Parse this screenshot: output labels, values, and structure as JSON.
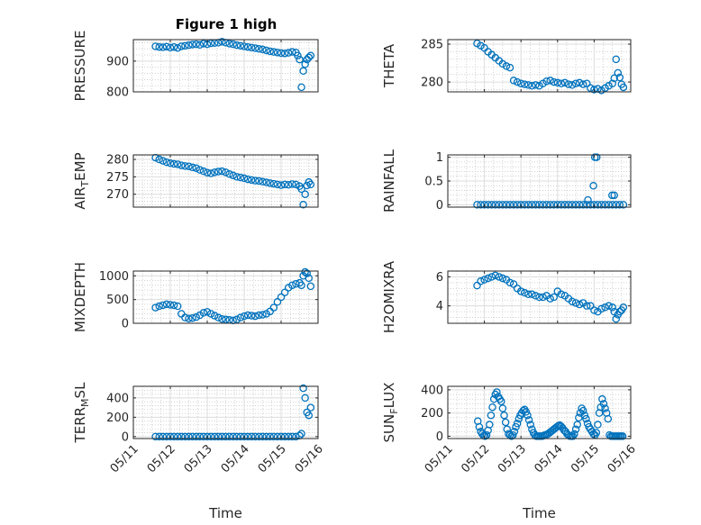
{
  "figure": {
    "title": "Figure 1 high"
  },
  "chart_data": [
    {
      "type": "scatter",
      "ylabel": "PRESSURE",
      "ylim": [
        800,
        970
      ],
      "yticks": [
        800,
        900
      ],
      "xlim": [
        "05/11",
        "05/16"
      ],
      "xticks": [
        "05/11",
        "05/12",
        "05/13",
        "05/14",
        "05/15",
        "05/16"
      ],
      "show_xticklabels": false,
      "xlabel": "",
      "grid": "major-and-minor",
      "x": [
        11.6,
        11.7,
        11.8,
        11.9,
        12.0,
        12.1,
        12.2,
        12.3,
        12.4,
        12.5,
        12.6,
        12.7,
        12.8,
        12.9,
        13.0,
        13.1,
        13.2,
        13.3,
        13.4,
        13.5,
        13.6,
        13.7,
        13.8,
        13.9,
        14.0,
        14.1,
        14.2,
        14.3,
        14.4,
        14.5,
        14.6,
        14.7,
        14.8,
        14.9,
        15.0,
        15.1,
        15.2,
        15.3,
        15.4,
        15.45,
        15.5,
        15.55,
        15.6,
        15.65,
        15.7,
        15.75,
        15.8
      ],
      "y": [
        948,
        946,
        945,
        947,
        944,
        946,
        943,
        948,
        950,
        952,
        954,
        955,
        953,
        957,
        955,
        958,
        959,
        960,
        963,
        960,
        957,
        955,
        952,
        950,
        948,
        946,
        944,
        942,
        940,
        938,
        935,
        932,
        930,
        928,
        926,
        925,
        927,
        930,
        928,
        918,
        905,
        815,
        868,
        890,
        905,
        912,
        918
      ]
    },
    {
      "type": "scatter",
      "ylabel": "THETA",
      "ylim": [
        278.7,
        285.6
      ],
      "yticks": [
        280,
        285
      ],
      "xlim": [
        "05/11",
        "05/16"
      ],
      "xticks": [
        "05/11",
        "05/12",
        "05/13",
        "05/14",
        "05/15",
        "05/16"
      ],
      "show_xticklabels": false,
      "xlabel": "",
      "grid": "major-and-minor",
      "x": [
        11.8,
        11.9,
        12.0,
        12.1,
        12.2,
        12.3,
        12.4,
        12.5,
        12.6,
        12.7,
        12.8,
        12.9,
        13.0,
        13.1,
        13.2,
        13.3,
        13.4,
        13.5,
        13.6,
        13.7,
        13.8,
        13.9,
        14.0,
        14.1,
        14.2,
        14.3,
        14.4,
        14.5,
        14.6,
        14.7,
        14.8,
        14.9,
        15.0,
        15.1,
        15.2,
        15.3,
        15.4,
        15.5,
        15.55,
        15.6,
        15.65,
        15.7,
        15.75,
        15.8
      ],
      "y": [
        285.1,
        284.8,
        284.5,
        284.0,
        283.6,
        283.2,
        282.8,
        282.4,
        282.1,
        281.9,
        280.2,
        280.0,
        279.8,
        279.7,
        279.6,
        279.5,
        279.6,
        279.5,
        279.8,
        280.1,
        280.2,
        280.0,
        279.9,
        279.8,
        279.9,
        279.7,
        279.6,
        279.8,
        279.9,
        279.7,
        279.8,
        279.2,
        279.0,
        279.1,
        278.9,
        279.2,
        279.5,
        279.8,
        280.5,
        283.0,
        281.2,
        280.6,
        279.7,
        279.3
      ]
    },
    {
      "type": "scatter",
      "ylabel": "AIR_TEMP",
      "ylim": [
        266.3,
        281.3
      ],
      "yticks": [
        270,
        275,
        280
      ],
      "xlim": [
        "05/11",
        "05/16"
      ],
      "xticks": [
        "05/11",
        "05/12",
        "05/13",
        "05/14",
        "05/15",
        "05/16"
      ],
      "show_xticklabels": false,
      "xlabel": "",
      "grid": "major-and-minor",
      "x": [
        11.6,
        11.7,
        11.8,
        11.9,
        12.0,
        12.1,
        12.2,
        12.3,
        12.4,
        12.5,
        12.6,
        12.7,
        12.8,
        12.9,
        13.0,
        13.1,
        13.2,
        13.3,
        13.4,
        13.5,
        13.6,
        13.7,
        13.8,
        13.9,
        14.0,
        14.1,
        14.2,
        14.3,
        14.4,
        14.5,
        14.6,
        14.7,
        14.8,
        14.9,
        15.0,
        15.1,
        15.2,
        15.3,
        15.4,
        15.5,
        15.55,
        15.6,
        15.65,
        15.7,
        15.75,
        15.8
      ],
      "y": [
        280.5,
        280.0,
        279.6,
        279.2,
        278.9,
        278.7,
        278.6,
        278.3,
        278.1,
        278.0,
        277.7,
        277.5,
        277.0,
        276.6,
        276.2,
        276.0,
        276.3,
        276.5,
        276.6,
        276.3,
        275.8,
        275.4,
        275.0,
        274.8,
        274.6,
        274.3,
        274.1,
        273.9,
        273.8,
        273.6,
        273.4,
        273.2,
        273.0,
        272.8,
        272.6,
        272.8,
        272.7,
        272.9,
        272.8,
        272.3,
        271.5,
        267.0,
        270.0,
        272.5,
        273.5,
        272.8
      ]
    },
    {
      "type": "scatter",
      "ylabel": "RAINFALL",
      "ylim": [
        -0.05,
        1.05
      ],
      "yticks": [
        0,
        0.5,
        1
      ],
      "xlim": [
        "05/11",
        "05/16"
      ],
      "xticks": [
        "05/11",
        "05/12",
        "05/13",
        "05/14",
        "05/15",
        "05/16"
      ],
      "show_xticklabels": false,
      "xlabel": "",
      "grid": "major-and-minor",
      "x": [
        11.8,
        11.9,
        12.0,
        12.1,
        12.2,
        12.3,
        12.4,
        12.5,
        12.6,
        12.7,
        12.8,
        12.9,
        13.0,
        13.1,
        13.2,
        13.3,
        13.4,
        13.5,
        13.6,
        13.7,
        13.8,
        13.9,
        14.0,
        14.1,
        14.2,
        14.3,
        14.4,
        14.5,
        14.6,
        14.7,
        14.8,
        14.9,
        15.0,
        15.1,
        15.2,
        15.3,
        15.4,
        15.5,
        15.6,
        15.7,
        15.8,
        14.83,
        14.98,
        15.02,
        15.07,
        15.49,
        15.55
      ],
      "y": [
        0,
        0,
        0,
        0,
        0,
        0,
        0,
        0,
        0,
        0,
        0,
        0,
        0,
        0,
        0,
        0,
        0,
        0,
        0,
        0,
        0,
        0,
        0,
        0,
        0,
        0,
        0,
        0,
        0,
        0,
        0,
        0,
        0,
        0,
        0,
        0,
        0,
        0,
        0,
        0,
        0,
        0.1,
        0.4,
        1.0,
        1.0,
        0.2,
        0.2
      ]
    },
    {
      "type": "scatter",
      "ylabel": "MIXDEPTH",
      "ylim": [
        0,
        1100
      ],
      "yticks": [
        0,
        500,
        1000
      ],
      "xlim": [
        "05/11",
        "05/16"
      ],
      "xticks": [
        "05/11",
        "05/12",
        "05/13",
        "05/14",
        "05/15",
        "05/16"
      ],
      "show_xticklabels": false,
      "xlabel": "",
      "grid": "major-and-minor",
      "x": [
        11.6,
        11.7,
        11.8,
        11.9,
        12.0,
        12.1,
        12.2,
        12.3,
        12.4,
        12.5,
        12.6,
        12.7,
        12.8,
        12.9,
        13.0,
        13.1,
        13.2,
        13.3,
        13.4,
        13.5,
        13.6,
        13.7,
        13.8,
        13.9,
        14.0,
        14.1,
        14.2,
        14.3,
        14.4,
        14.5,
        14.6,
        14.7,
        14.8,
        14.9,
        15.0,
        15.1,
        15.2,
        15.3,
        15.4,
        15.5,
        15.55,
        15.6,
        15.65,
        15.7,
        15.75,
        15.8
      ],
      "y": [
        330,
        360,
        380,
        400,
        390,
        380,
        360,
        200,
        120,
        100,
        110,
        130,
        170,
        220,
        240,
        200,
        160,
        120,
        90,
        80,
        70,
        60,
        80,
        120,
        150,
        170,
        160,
        150,
        170,
        180,
        200,
        250,
        330,
        450,
        550,
        650,
        750,
        800,
        830,
        850,
        800,
        1000,
        1080,
        1050,
        950,
        780
      ]
    },
    {
      "type": "scatter",
      "ylabel": "H2OMIXRA",
      "ylim": [
        2.8,
        6.4
      ],
      "yticks": [
        4,
        6
      ],
      "xlim": [
        "05/11",
        "05/16"
      ],
      "xticks": [
        "05/11",
        "05/12",
        "05/13",
        "05/14",
        "05/15",
        "05/16"
      ],
      "show_xticklabels": false,
      "xlabel": "",
      "grid": "major-and-minor",
      "x": [
        11.8,
        11.9,
        12.0,
        12.1,
        12.2,
        12.3,
        12.4,
        12.5,
        12.6,
        12.7,
        12.8,
        12.9,
        13.0,
        13.1,
        13.2,
        13.3,
        13.4,
        13.5,
        13.6,
        13.7,
        13.8,
        13.9,
        14.0,
        14.1,
        14.2,
        14.3,
        14.4,
        14.5,
        14.6,
        14.7,
        14.8,
        14.9,
        15.0,
        15.1,
        15.2,
        15.3,
        15.4,
        15.5,
        15.55,
        15.6,
        15.65,
        15.7,
        15.75,
        15.8
      ],
      "y": [
        5.4,
        5.7,
        5.8,
        5.9,
        6.0,
        6.1,
        6.0,
        5.9,
        5.8,
        5.6,
        5.5,
        5.2,
        5.0,
        4.9,
        4.8,
        4.8,
        4.7,
        4.6,
        4.6,
        4.7,
        4.5,
        4.6,
        5.0,
        4.8,
        4.7,
        4.5,
        4.3,
        4.2,
        4.1,
        4.2,
        4.0,
        4.0,
        3.7,
        3.6,
        3.8,
        3.9,
        4.0,
        3.9,
        3.6,
        3.1,
        3.4,
        3.6,
        3.7,
        3.9
      ]
    },
    {
      "type": "scatter",
      "ylabel": "TERR_MSL",
      "ylim": [
        -20,
        520
      ],
      "yticks": [
        0,
        200,
        400
      ],
      "xlim": [
        "05/11",
        "05/16"
      ],
      "xticks": [
        "05/11",
        "05/12",
        "05/13",
        "05/14",
        "05/15",
        "05/16"
      ],
      "show_xticklabels": true,
      "xlabel": "Time",
      "grid": "major-and-minor",
      "x": [
        11.6,
        11.7,
        11.8,
        11.9,
        12.0,
        12.1,
        12.2,
        12.3,
        12.4,
        12.5,
        12.6,
        12.7,
        12.8,
        12.9,
        13.0,
        13.1,
        13.2,
        13.3,
        13.4,
        13.5,
        13.6,
        13.7,
        13.8,
        13.9,
        14.0,
        14.1,
        14.2,
        14.3,
        14.4,
        14.5,
        14.6,
        14.7,
        14.8,
        14.9,
        15.0,
        15.1,
        15.2,
        15.3,
        15.4,
        15.5,
        15.55,
        15.6,
        15.65,
        15.7,
        15.75,
        15.8
      ],
      "y": [
        0,
        0,
        0,
        0,
        0,
        0,
        0,
        0,
        0,
        0,
        0,
        0,
        0,
        0,
        0,
        0,
        0,
        0,
        0,
        0,
        0,
        0,
        0,
        0,
        0,
        0,
        0,
        0,
        0,
        0,
        0,
        0,
        0,
        0,
        0,
        0,
        0,
        0,
        0,
        10,
        30,
        500,
        400,
        250,
        220,
        300
      ]
    },
    {
      "type": "scatter",
      "ylabel": "SUN_FLUX",
      "ylim": [
        -20,
        430
      ],
      "yticks": [
        0,
        200,
        400
      ],
      "xlim": [
        "05/11",
        "05/16"
      ],
      "xticks": [
        "05/11",
        "05/12",
        "05/13",
        "05/14",
        "05/15",
        "05/16"
      ],
      "show_xticklabels": true,
      "xlabel": "Time",
      "grid": "major-and-minor",
      "x": [
        11.82,
        11.86,
        11.9,
        11.94,
        11.98,
        12.02,
        12.06,
        12.1,
        12.14,
        12.18,
        12.22,
        12.26,
        12.3,
        12.34,
        12.38,
        12.42,
        12.46,
        12.5,
        12.54,
        12.58,
        12.62,
        12.66,
        12.7,
        12.74,
        12.78,
        12.82,
        12.86,
        12.9,
        12.94,
        12.98,
        13.02,
        13.06,
        13.1,
        13.14,
        13.18,
        13.22,
        13.26,
        13.3,
        13.34,
        13.38,
        13.42,
        13.46,
        13.5,
        13.54,
        13.58,
        13.62,
        13.66,
        13.7,
        13.74,
        13.78,
        13.82,
        13.86,
        13.9,
        13.94,
        13.98,
        14.02,
        14.06,
        14.1,
        14.14,
        14.18,
        14.22,
        14.26,
        14.3,
        14.34,
        14.38,
        14.42,
        14.46,
        14.5,
        14.54,
        14.58,
        14.62,
        14.66,
        14.7,
        14.74,
        14.78,
        14.82,
        14.86,
        14.9,
        14.94,
        14.98,
        15.02,
        15.06,
        15.1,
        15.14,
        15.18,
        15.22,
        15.26,
        15.3,
        15.34,
        15.38,
        15.42,
        15.46,
        15.5,
        15.54,
        15.58,
        15.62,
        15.66,
        15.7,
        15.74,
        15.78
      ],
      "y": [
        130,
        80,
        40,
        20,
        5,
        0,
        10,
        50,
        100,
        180,
        250,
        320,
        360,
        380,
        340,
        320,
        300,
        240,
        180,
        120,
        60,
        20,
        10,
        0,
        10,
        40,
        80,
        110,
        150,
        180,
        200,
        220,
        230,
        210,
        180,
        140,
        100,
        60,
        30,
        10,
        0,
        0,
        0,
        0,
        0,
        5,
        10,
        15,
        20,
        30,
        40,
        50,
        60,
        70,
        80,
        90,
        95,
        85,
        70,
        50,
        40,
        20,
        10,
        0,
        0,
        0,
        20,
        60,
        100,
        160,
        200,
        240,
        220,
        180,
        150,
        110,
        80,
        60,
        40,
        20,
        10,
        30,
        100,
        200,
        250,
        320,
        280,
        240,
        200,
        150,
        10,
        0,
        0,
        0,
        0,
        0,
        0,
        0,
        0,
        0
      ]
    }
  ]
}
